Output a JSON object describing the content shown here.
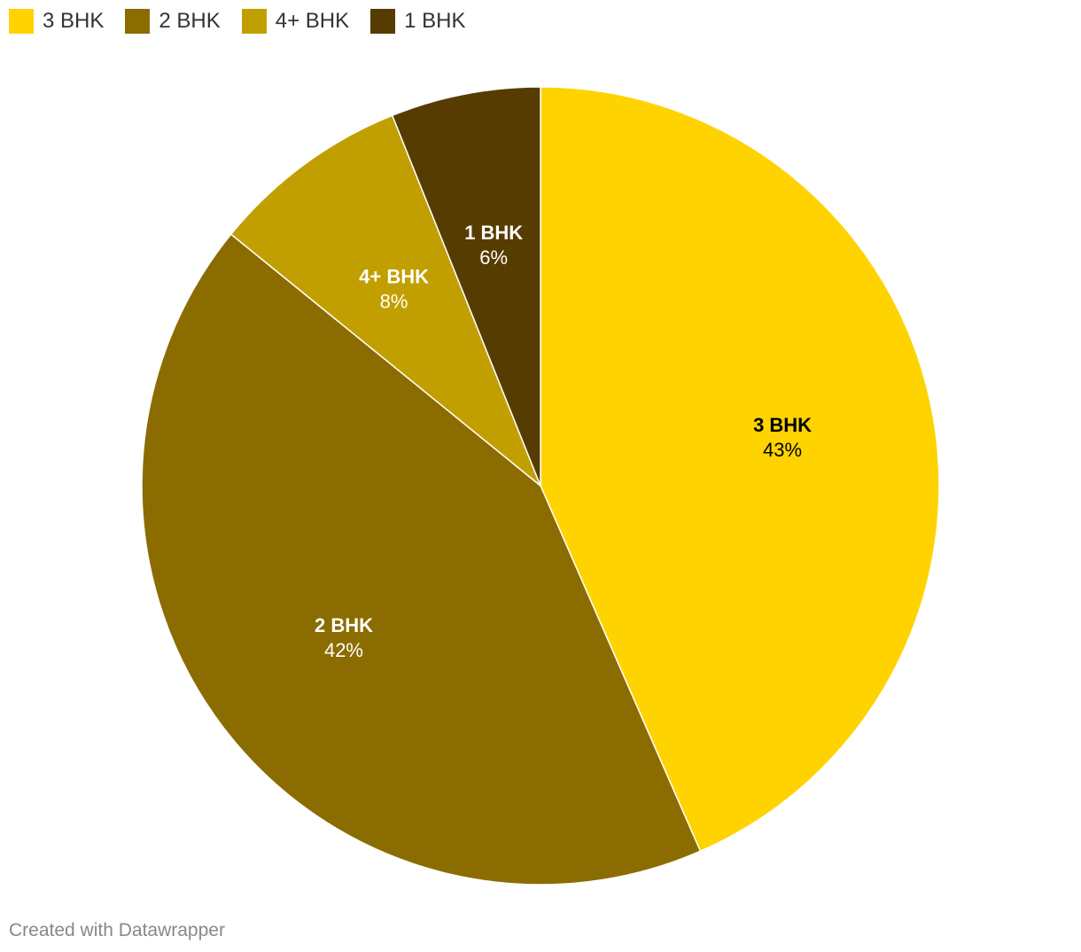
{
  "chart_data": {
    "type": "pie",
    "title": "",
    "categories": [
      "3 BHK",
      "2 BHK",
      "4+ BHK",
      "1 BHK"
    ],
    "values": [
      43,
      42,
      8,
      6
    ],
    "percent_labels": [
      "43%",
      "42%",
      "8%",
      "6%"
    ],
    "colors": [
      "#fed300",
      "#8b6c00",
      "#c29f00",
      "#563c00"
    ],
    "label_colors": [
      "#000000",
      "#ffffff",
      "#ffffff",
      "#ffffff"
    ],
    "legend": {
      "placement": "top-left",
      "items": [
        "3 BHK",
        "2 BHK",
        "4+ BHK",
        "1 BHK"
      ]
    }
  },
  "footer": {
    "credit": "Created with Datawrapper"
  }
}
